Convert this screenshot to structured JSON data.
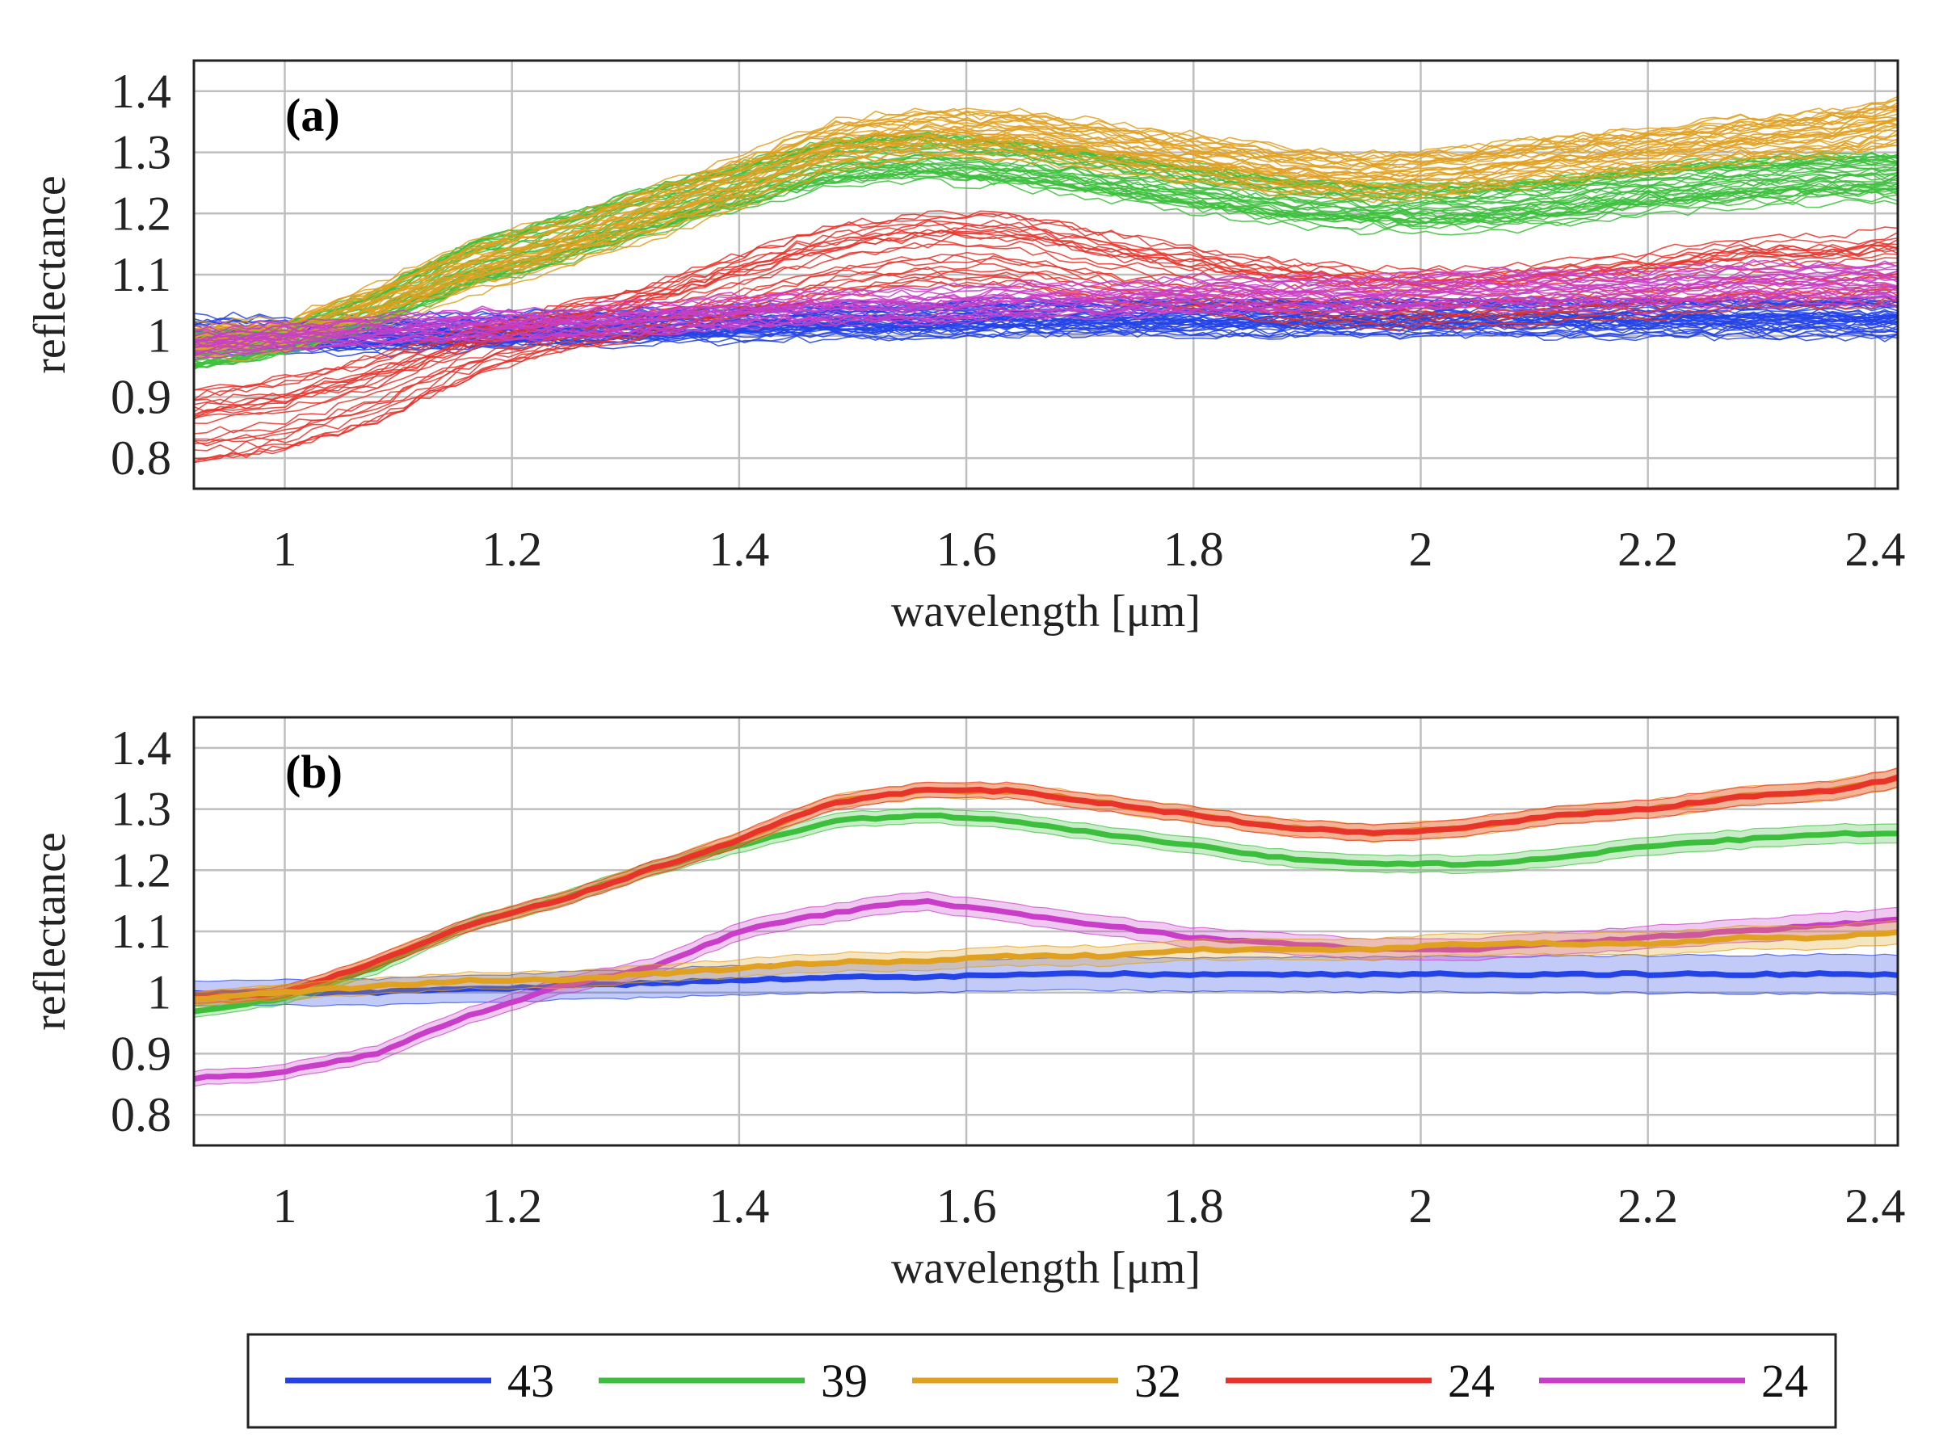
{
  "palette": {
    "c43": "#2343e6",
    "c39": "#3cbf3c",
    "c32": "#e0a020",
    "c24a": "#e8332a",
    "c24b": "#c83ec8"
  },
  "legend": [
    {
      "label": "43",
      "color": "#2343e6"
    },
    {
      "label": "39",
      "color": "#3cbf3c"
    },
    {
      "label": "32",
      "color": "#e0a020"
    },
    {
      "label": "24",
      "color": "#e8332a"
    },
    {
      "label": "24",
      "color": "#c83ec8"
    }
  ],
  "chart_data": [
    {
      "type": "line",
      "panel_label": "(a)",
      "xlabel": "wavelength [μm]",
      "ylabel": "reflectance",
      "xlim": [
        0.92,
        2.42
      ],
      "ylim": [
        0.75,
        1.45
      ],
      "xticks": [
        1,
        1.2,
        1.4,
        1.6,
        1.8,
        2,
        2.2,
        2.4
      ],
      "xtick_labels": [
        "1",
        "1.2",
        "1.4",
        "1.6",
        "1.8",
        "2",
        "2.2",
        "2.4"
      ],
      "yticks": [
        0.8,
        0.9,
        1,
        1.1,
        1.2,
        1.3,
        1.4
      ],
      "ytick_labels": [
        "0.8",
        "0.9",
        "1",
        "1.1",
        "1.2",
        "1.3",
        "1.4"
      ],
      "grid": true,
      "x": [
        0.92,
        1.0,
        1.08,
        1.16,
        1.24,
        1.32,
        1.4,
        1.48,
        1.56,
        1.64,
        1.72,
        1.8,
        1.88,
        1.96,
        2.04,
        2.12,
        2.2,
        2.28,
        2.36,
        2.42
      ],
      "series": [
        {
          "name": "43",
          "color": "#2343e6",
          "count": 43,
          "spread": 0.04,
          "values": [
            1.0,
            1.0,
            1.0,
            1.005,
            1.01,
            1.015,
            1.02,
            1.025,
            1.025,
            1.03,
            1.03,
            1.03,
            1.03,
            1.03,
            1.03,
            1.03,
            1.03,
            1.03,
            1.03,
            1.03
          ]
        },
        {
          "name": "39",
          "color": "#3cbf3c",
          "count": 39,
          "spread": 0.04,
          "values": [
            0.97,
            0.99,
            1.04,
            1.11,
            1.15,
            1.2,
            1.24,
            1.28,
            1.29,
            1.28,
            1.26,
            1.24,
            1.22,
            1.21,
            1.21,
            1.22,
            1.24,
            1.25,
            1.26,
            1.26
          ]
        },
        {
          "name": "32",
          "color": "#e0a020",
          "count": 32,
          "spread": 0.04,
          "values": [
            0.99,
            1.0,
            1.05,
            1.11,
            1.15,
            1.2,
            1.25,
            1.31,
            1.33,
            1.33,
            1.31,
            1.29,
            1.27,
            1.26,
            1.27,
            1.29,
            1.3,
            1.32,
            1.33,
            1.35
          ]
        },
        {
          "name": "24",
          "color": "#e8332a",
          "count": 24,
          "spread": 0.06,
          "values": [
            0.85,
            0.87,
            0.91,
            0.97,
            1.01,
            1.04,
            1.08,
            1.12,
            1.14,
            1.14,
            1.11,
            1.09,
            1.07,
            1.06,
            1.06,
            1.07,
            1.08,
            1.1,
            1.1,
            1.11
          ]
        },
        {
          "name": "24",
          "color": "#c83ec8",
          "count": 24,
          "spread": 0.04,
          "values": [
            0.99,
            1.0,
            1.01,
            1.02,
            1.02,
            1.03,
            1.04,
            1.05,
            1.05,
            1.06,
            1.06,
            1.07,
            1.07,
            1.07,
            1.08,
            1.08,
            1.08,
            1.09,
            1.09,
            1.09
          ]
        }
      ]
    },
    {
      "type": "line",
      "panel_label": "(b)",
      "xlabel": "wavelength [μm]",
      "ylabel": "reflectance",
      "xlim": [
        0.92,
        2.42
      ],
      "ylim": [
        0.75,
        1.45
      ],
      "xticks": [
        1,
        1.2,
        1.4,
        1.6,
        1.8,
        2,
        2.2,
        2.4
      ],
      "xtick_labels": [
        "1",
        "1.2",
        "1.4",
        "1.6",
        "1.8",
        "2",
        "2.2",
        "2.4"
      ],
      "yticks": [
        0.8,
        0.9,
        1,
        1.1,
        1.2,
        1.3,
        1.4
      ],
      "ytick_labels": [
        "0.8",
        "0.9",
        "1",
        "1.1",
        "1.2",
        "1.3",
        "1.4"
      ],
      "grid": true,
      "x": [
        0.92,
        1.0,
        1.08,
        1.16,
        1.24,
        1.32,
        1.4,
        1.48,
        1.56,
        1.64,
        1.72,
        1.8,
        1.88,
        1.96,
        2.04,
        2.12,
        2.2,
        2.28,
        2.36,
        2.42
      ],
      "series": [
        {
          "name": "43",
          "color": "#2343e6",
          "band": 0.025,
          "values": [
            1.0,
            1.0,
            1.0,
            1.005,
            1.01,
            1.015,
            1.02,
            1.025,
            1.025,
            1.03,
            1.03,
            1.03,
            1.03,
            1.03,
            1.03,
            1.03,
            1.03,
            1.03,
            1.03,
            1.03
          ]
        },
        {
          "name": "39",
          "color": "#3cbf3c",
          "band": 0.012,
          "values": [
            0.97,
            0.99,
            1.04,
            1.11,
            1.15,
            1.2,
            1.24,
            1.28,
            1.29,
            1.28,
            1.26,
            1.24,
            1.22,
            1.21,
            1.21,
            1.22,
            1.24,
            1.25,
            1.26,
            1.26
          ]
        },
        {
          "name": "32",
          "color": "#e0a020",
          "band": 0.012,
          "values": [
            0.99,
            1.0,
            1.05,
            1.11,
            1.15,
            1.2,
            1.25,
            1.31,
            1.33,
            1.33,
            1.31,
            1.29,
            1.27,
            1.26,
            1.27,
            1.29,
            1.3,
            1.32,
            1.33,
            1.35
          ]
        },
        {
          "name": "24",
          "color": "#e8332a",
          "band": 0.012,
          "values": [
            0.99,
            1.0,
            1.05,
            1.11,
            1.15,
            1.2,
            1.25,
            1.31,
            1.33,
            1.33,
            1.31,
            1.29,
            1.27,
            1.26,
            1.27,
            1.29,
            1.3,
            1.32,
            1.33,
            1.35
          ]
        },
        {
          "name": "24",
          "color": "#c83ec8",
          "band": 0.015,
          "values": [
            0.86,
            0.87,
            0.9,
            0.96,
            1.01,
            1.04,
            1.1,
            1.13,
            1.15,
            1.13,
            1.11,
            1.09,
            1.08,
            1.07,
            1.07,
            1.08,
            1.09,
            1.1,
            1.11,
            1.12
          ]
        },
        {
          "name": "32",
          "color": "#e0a020",
          "band": 0.015,
          "values": [
            0.99,
            1.0,
            1.01,
            1.02,
            1.02,
            1.03,
            1.04,
            1.05,
            1.05,
            1.06,
            1.06,
            1.07,
            1.07,
            1.07,
            1.08,
            1.08,
            1.08,
            1.09,
            1.09,
            1.1
          ]
        }
      ]
    }
  ]
}
